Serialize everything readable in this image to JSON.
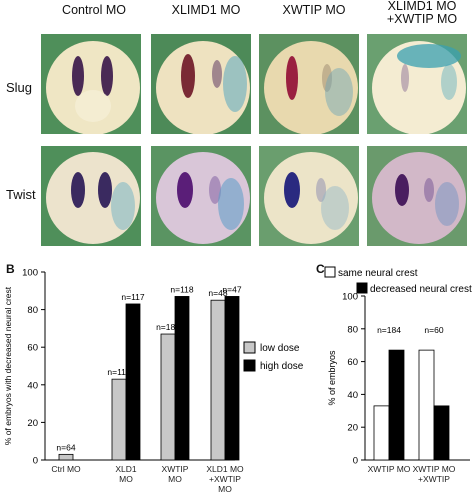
{
  "panelA": {
    "columns": [
      "Control MO",
      "XLIMD1 MO",
      "XWTIP MO",
      "XLIMD1 MO\n+XWTIP MO"
    ],
    "rows": [
      "Slug",
      "Twist"
    ]
  },
  "panelB": {
    "letter": "B",
    "legend": [
      "low dose",
      "high dose"
    ],
    "colors": {
      "low": "#c8c8c8",
      "high": "#000000"
    }
  },
  "panelC": {
    "letter": "C",
    "legend": [
      "same neural crest",
      "decreased neural crest"
    ],
    "colors": {
      "same": "#ffffff",
      "decreased": "#000000"
    }
  },
  "chart_data": [
    {
      "type": "bar",
      "ylabel": "% of embryos with decreased neural crest",
      "ylim": [
        0,
        100
      ],
      "yticks": [
        0,
        20,
        40,
        60,
        80,
        100
      ],
      "categories": [
        "Ctrl MO",
        "XLD1\nMO",
        "XWTIP\nMO",
        "XLD1 MO\n+XWTIP\nMO"
      ],
      "series": [
        {
          "name": "low dose",
          "values": [
            3,
            43,
            67,
            85
          ],
          "labels": [
            "n=64",
            "n=113",
            "n=184",
            "n=48"
          ]
        },
        {
          "name": "high dose",
          "values": [
            null,
            83,
            87,
            87
          ],
          "labels": [
            "",
            "n=117",
            "n=118",
            "n=47"
          ]
        }
      ]
    },
    {
      "type": "bar",
      "ylabel": "% of embryos",
      "ylim": [
        0,
        100
      ],
      "yticks": [
        0,
        20,
        40,
        60,
        80,
        100
      ],
      "categories": [
        "XWTIP MO",
        "XWTIP MO\n+XWTIP"
      ],
      "series": [
        {
          "name": "same neural crest",
          "values": [
            33,
            67
          ]
        },
        {
          "name": "decreased neural crest",
          "values": [
            67,
            33
          ]
        }
      ],
      "group_labels": [
        "n=184",
        "n=60"
      ]
    }
  ]
}
